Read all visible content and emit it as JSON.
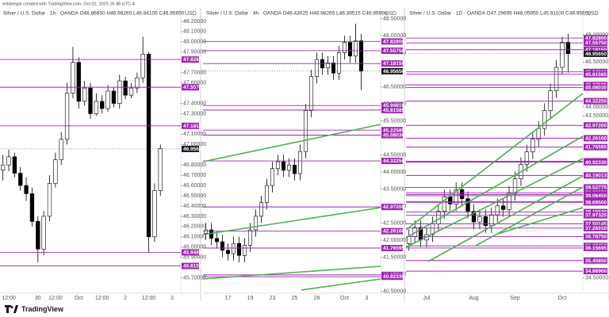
{
  "header": {
    "text": "erikbregar created with TradingView.com, Oct 02, 2025 16:48 UTC-4"
  },
  "footer": {
    "logo": "TradingView"
  },
  "chart_data": [
    {
      "type": "candlestick",
      "title": "Silver / U.S. Dollar · 1h · OANDA  O46.86650 H46.98265 L46.84105 C46.95650",
      "y_label": "USD",
      "categories": [
        null,
        "12:00",
        null,
        null,
        null,
        null,
        "30",
        null,
        null,
        "12:00",
        null,
        null,
        null,
        "Oct",
        null,
        null,
        null,
        "12:00",
        null,
        null,
        null,
        "2",
        null,
        null,
        null,
        "12:00",
        null,
        null,
        null,
        "3",
        null
      ],
      "open": [
        46.75,
        46.8,
        46.88,
        46.72,
        46.6,
        46.52,
        46.25,
        45.98,
        46.3,
        46.62,
        46.85,
        47.05,
        47.5,
        47.8,
        47.42,
        47.55,
        47.3,
        47.42,
        47.35,
        47.52,
        47.4,
        47.62,
        47.48,
        47.55,
        47.65,
        47.88,
        46.1,
        46.55,
        null,
        null,
        null
      ],
      "high": [
        46.9,
        46.95,
        46.92,
        46.78,
        46.68,
        46.58,
        46.3,
        46.35,
        46.7,
        46.92,
        47.12,
        47.6,
        47.95,
        47.85,
        47.62,
        47.6,
        47.5,
        47.48,
        47.58,
        47.56,
        47.68,
        47.66,
        47.6,
        47.7,
        48.05,
        47.9,
        46.62,
        47.0,
        null,
        null,
        null
      ],
      "low": [
        46.65,
        46.74,
        46.68,
        46.55,
        46.45,
        46.2,
        45.85,
        45.92,
        46.25,
        46.58,
        46.8,
        47.0,
        47.45,
        47.35,
        47.38,
        47.25,
        47.28,
        47.3,
        47.32,
        47.36,
        47.35,
        47.44,
        47.45,
        47.5,
        47.6,
        45.95,
        46.05,
        46.5,
        null,
        null,
        null
      ],
      "close": [
        46.8,
        46.88,
        46.72,
        46.6,
        46.52,
        46.25,
        45.98,
        46.3,
        46.62,
        46.85,
        47.05,
        47.5,
        47.8,
        47.42,
        47.55,
        47.3,
        47.42,
        47.35,
        47.52,
        47.4,
        47.62,
        47.48,
        47.55,
        47.65,
        47.88,
        46.1,
        46.55,
        46.96,
        null,
        null,
        null
      ],
      "ylim": [
        45.55,
        48.3
      ],
      "yticks": [
        {
          "value": 48.2,
          "label": "48.20000"
        },
        {
          "value": 48.1,
          "label": "48.10000"
        },
        {
          "value": 48.0,
          "label": "48.00000"
        },
        {
          "value": 47.9,
          "label": "47.90000"
        },
        {
          "value": 47.7,
          "label": "47.70000"
        },
        {
          "value": 47.6,
          "label": "47.60000"
        },
        {
          "value": 47.4,
          "label": "47.40000"
        },
        {
          "value": 47.3,
          "label": "47.30000"
        },
        {
          "value": 47.1,
          "label": "47.10000"
        },
        {
          "value": 47.0,
          "label": "47.00000"
        },
        {
          "value": 46.8,
          "label": "46.80000"
        },
        {
          "value": 46.7,
          "label": "46.70000"
        },
        {
          "value": 46.6,
          "label": "46.60000"
        },
        {
          "value": 46.5,
          "label": "46.50000"
        },
        {
          "value": 46.4,
          "label": "46.40000"
        },
        {
          "value": 46.3,
          "label": "46.30000"
        },
        {
          "value": 46.2,
          "label": "46.20000"
        },
        {
          "value": 46.1,
          "label": "46.10000"
        },
        {
          "value": 46.0,
          "label": "46.00000"
        },
        {
          "value": 45.9,
          "label": "45.90000"
        },
        {
          "value": 45.7,
          "label": "45.70000"
        }
      ],
      "levels": [
        {
          "value": 47.828,
          "label": "47.82800"
        },
        {
          "value": 47.5575,
          "label": "47.55750"
        },
        {
          "value": 47.1815,
          "label": "47.18150"
        },
        {
          "value": 45.9481,
          "label": "45.94810"
        },
        {
          "value": 45.81585,
          "label": "45.81585"
        }
      ],
      "last_price": {
        "value": 46.9565,
        "label": "46.95650"
      },
      "up_color": "#ffffff",
      "down_color": "#000000",
      "level_color": "#9c27b0"
    },
    {
      "type": "candlestick",
      "title": "Silver / U.S. Dollar · 4h · OANDA  O46.43025 H46.98265 L46.39515 C46.95650",
      "y_label": "USD",
      "categories": [
        null,
        null,
        null,
        null,
        "17",
        null,
        null,
        null,
        "19",
        null,
        null,
        null,
        "23",
        null,
        null,
        null,
        "25",
        null,
        null,
        null,
        "28",
        null,
        null,
        null,
        null,
        "Oct",
        null,
        null,
        null,
        "3",
        null,
        null
      ],
      "open": [
        42.2,
        42.3,
        42.05,
        41.95,
        41.7,
        41.6,
        41.9,
        41.55,
        41.85,
        42.3,
        42.7,
        43.1,
        43.6,
        44.1,
        44.3,
        44.05,
        44.2,
        43.95,
        44.6,
        45.8,
        46.8,
        47.3,
        47.05,
        47.2,
        46.9,
        47.5,
        47.8,
        47.4,
        47.85,
        null,
        null,
        null
      ],
      "high": [
        42.5,
        42.5,
        42.25,
        42.15,
        41.9,
        42.1,
        42.1,
        42.05,
        42.5,
        42.9,
        43.3,
        43.8,
        44.3,
        44.5,
        44.5,
        44.4,
        44.4,
        44.8,
        46.0,
        47.0,
        47.5,
        47.5,
        47.4,
        47.4,
        47.7,
        48.0,
        48.0,
        48.35,
        48.05,
        null,
        null,
        null
      ],
      "low": [
        42.0,
        41.85,
        41.75,
        41.5,
        41.4,
        41.4,
        41.35,
        41.35,
        41.65,
        42.1,
        42.5,
        42.9,
        43.4,
        43.9,
        43.85,
        43.85,
        43.75,
        43.75,
        44.4,
        45.6,
        46.6,
        46.85,
        46.85,
        46.7,
        46.7,
        47.3,
        47.2,
        47.2,
        46.4,
        null,
        null,
        null
      ],
      "close": [
        42.3,
        42.05,
        41.95,
        41.7,
        41.6,
        41.9,
        41.55,
        41.85,
        42.3,
        42.7,
        43.1,
        43.6,
        44.1,
        44.3,
        44.05,
        44.2,
        43.95,
        44.6,
        45.8,
        46.8,
        47.3,
        47.05,
        47.2,
        46.9,
        47.5,
        47.8,
        47.4,
        47.85,
        46.96,
        null,
        null,
        null
      ],
      "ylim": [
        40.44,
        48.72
      ],
      "yticks": [
        {
          "value": 48.5,
          "label": "48.50000"
        },
        {
          "value": 48.0,
          "label": "48.00000"
        },
        {
          "value": 47.5,
          "label": "47.50000"
        },
        {
          "value": 46.5,
          "label": "46.50000"
        },
        {
          "value": 46.0,
          "label": "46.00000"
        },
        {
          "value": 45.5,
          "label": "45.50000"
        },
        {
          "value": 44.5,
          "label": "44.50000"
        },
        {
          "value": 44.0,
          "label": "44.00000"
        },
        {
          "value": 43.5,
          "label": "43.50000"
        },
        {
          "value": 43.0,
          "label": "43.00000"
        },
        {
          "value": 42.5,
          "label": "42.50000"
        },
        {
          "value": 42.0,
          "label": "42.00000"
        },
        {
          "value": 41.5,
          "label": "41.50000"
        },
        {
          "value": 41.0,
          "label": "41.00000"
        },
        {
          "value": 40.5,
          "label": "40.50000"
        }
      ],
      "levels": [
        {
          "value": 47.828,
          "label": "47.82800"
        },
        {
          "value": 47.5575,
          "label": "47.55750"
        },
        {
          "value": 47.1815,
          "label": "47.18150"
        },
        {
          "value": 45.9481,
          "label": "45.94810"
        },
        {
          "value": 45.81585,
          "label": "45.81585"
        },
        {
          "value": 45.22585,
          "label": "45.22585"
        },
        {
          "value": 45.0803,
          "label": "45.08030"
        },
        {
          "value": 44.3225,
          "label": "44.32250"
        },
        {
          "value": 42.972,
          "label": "42.97200"
        },
        {
          "value": 42.2616,
          "label": "42.26160"
        },
        {
          "value": 41.76595,
          "label": "41.76595"
        },
        {
          "value": 40.97785,
          "label": "40.97785"
        },
        {
          "value": 40.9233,
          "label": "40.92330"
        }
      ],
      "last_price": {
        "value": 46.9565,
        "label": "46.95650"
      },
      "up_color": "#ffffff",
      "down_color": "#000000",
      "level_color": "#9c27b0"
    },
    {
      "type": "candlestick",
      "title": "Silver / U.S. Dollar · 1D · OANDA  O47.29695 H48.05950 L45.91100 C46.95650",
      "y_label": "USD",
      "categories": [
        null,
        null,
        null,
        "Jul",
        null,
        null,
        null,
        null,
        null,
        null,
        null,
        "Aug",
        null,
        null,
        null,
        null,
        null,
        null,
        "Sep",
        null,
        null,
        null,
        null,
        null,
        null,
        null,
        "Oct",
        null,
        null,
        null
      ],
      "open": [
        36.4,
        36.8,
        37.3,
        36.6,
        36.9,
        37.5,
        38.2,
        39.0,
        38.6,
        39.4,
        38.9,
        38.2,
        37.6,
        37.9,
        37.4,
        38.0,
        38.5,
        38.3,
        39.2,
        40.0,
        40.8,
        41.5,
        42.2,
        42.8,
        43.8,
        44.9,
        46.2,
        47.6,
        null,
        null
      ],
      "high": [
        37.2,
        37.7,
        37.7,
        37.3,
        37.9,
        38.6,
        39.4,
        39.4,
        39.8,
        39.8,
        39.3,
        38.6,
        38.3,
        38.3,
        38.4,
        38.9,
        38.9,
        39.6,
        40.4,
        41.2,
        41.9,
        42.6,
        43.2,
        44.2,
        45.3,
        46.6,
        47.9,
        48.06,
        null,
        null
      ],
      "low": [
        36.0,
        36.4,
        36.2,
        36.2,
        36.5,
        37.1,
        37.8,
        38.2,
        38.2,
        38.5,
        37.8,
        37.2,
        37.2,
        37.0,
        37.0,
        37.6,
        37.9,
        37.9,
        38.8,
        39.6,
        40.4,
        41.1,
        41.8,
        42.4,
        43.4,
        44.5,
        45.8,
        45.91,
        null,
        null
      ],
      "close": [
        36.8,
        37.3,
        36.6,
        36.9,
        37.5,
        38.2,
        39.0,
        38.6,
        39.4,
        38.9,
        38.2,
        37.6,
        37.9,
        37.4,
        38.0,
        38.5,
        38.3,
        39.2,
        40.0,
        40.8,
        41.5,
        42.2,
        42.8,
        43.8,
        44.9,
        46.2,
        47.6,
        46.96,
        null,
        null
      ],
      "ylim": [
        33.64,
        49.33
      ],
      "yticks": [
        {
          "value": 48.0,
          "label": "48.00000"
        },
        {
          "value": 46.5,
          "label": "46.50000"
        },
        {
          "value": 44.0,
          "label": "44.00000"
        },
        {
          "value": 43.5,
          "label": "43.50000"
        },
        {
          "value": 34.5,
          "label": "34.50000"
        }
      ],
      "levels": [
        {
          "value": 47.828,
          "label": "47.82800"
        },
        {
          "value": 47.5575,
          "label": "47.55750"
        },
        {
          "value": 47.1815,
          "label": "47.18150"
        },
        {
          "value": 45.9481,
          "label": "45.94810"
        },
        {
          "value": 45.81585,
          "label": "45.81585"
        },
        {
          "value": 45.22585,
          "label": "45.22585"
        },
        {
          "value": 45.0803,
          "label": "45.08030"
        },
        {
          "value": 44.3225,
          "label": "44.32250"
        },
        {
          "value": 42.972,
          "label": "42.97200"
        },
        {
          "value": 42.2616,
          "label": "42.26160"
        },
        {
          "value": 41.76595,
          "label": "41.76595"
        },
        {
          "value": 40.97785,
          "label": "40.97785"
        },
        {
          "value": 40.9233,
          "label": "40.92330"
        },
        {
          "value": 40.19013,
          "label": "40.19013"
        },
        {
          "value": 39.52775,
          "label": "39.52775"
        },
        {
          "value": 39.2307,
          "label": "39.23070"
        },
        {
          "value": 39.1328,
          "label": "39.13280"
        },
        {
          "value": 39.0645,
          "label": "39.06450"
        },
        {
          "value": 38.738,
          "label": "38.73800"
        },
        {
          "value": 38.695,
          "label": "38.69500"
        },
        {
          "value": 38.1553,
          "label": "38.15530"
        },
        {
          "value": 37.97325,
          "label": "37.97325"
        },
        {
          "value": 37.50145,
          "label": "37.50145"
        },
        {
          "value": 37.2601,
          "label": "37.26010"
        },
        {
          "value": 36.7875,
          "label": "36.78750"
        },
        {
          "value": 36.2745,
          "label": "36.27450"
        },
        {
          "value": 36.15695,
          "label": "36.15695"
        },
        {
          "value": 35.4585,
          "label": "35.45850"
        },
        {
          "value": 34.869,
          "label": "34.86900"
        }
      ],
      "last_price": {
        "value": 46.9565,
        "label": "46.95650"
      },
      "up_color": "#ffffff",
      "down_color": "#000000",
      "level_color": "#9c27b0"
    }
  ]
}
